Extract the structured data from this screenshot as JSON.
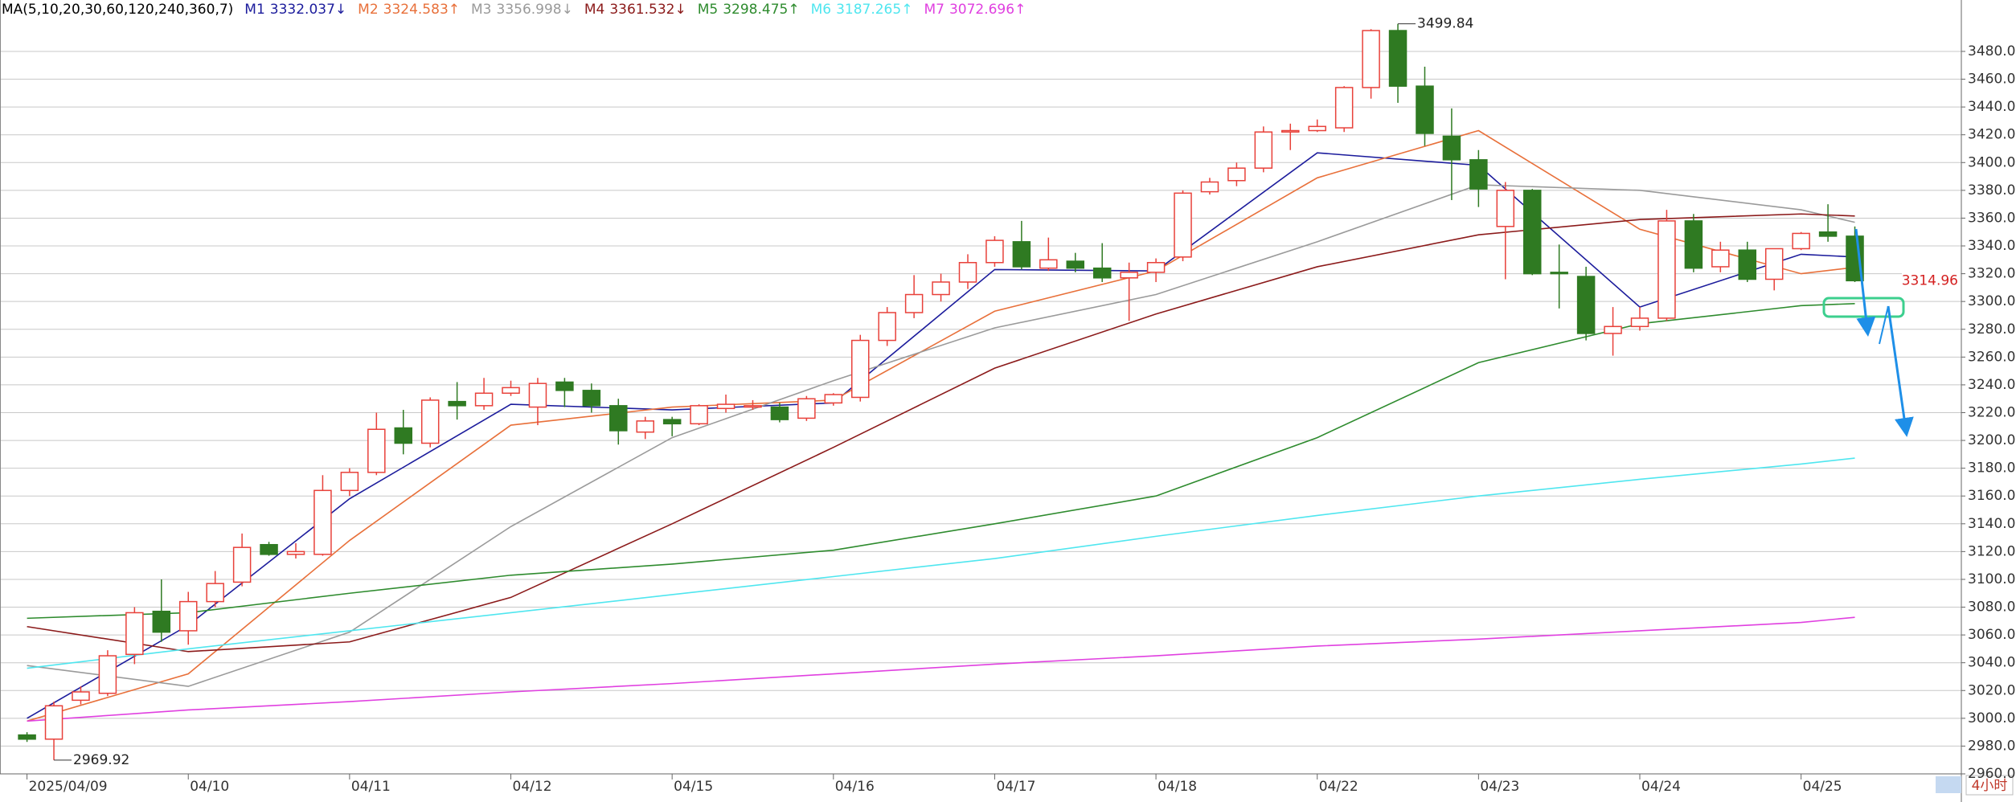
{
  "chart_data": {
    "type": "candlestick",
    "indicator": "MA(5,10,20,30,60,120,240,360,7)",
    "ylim": [
      2960,
      3517
    ],
    "yticks": [
      {
        "value": 2960,
        "label": "2960.00"
      },
      {
        "value": 2980,
        "label": "2980.00"
      },
      {
        "value": 3000,
        "label": "3000.00"
      },
      {
        "value": 3020,
        "label": "3020.00"
      },
      {
        "value": 3040,
        "label": "3040.00"
      },
      {
        "value": 3060,
        "label": "3060.00"
      },
      {
        "value": 3080,
        "label": "3080.00"
      },
      {
        "value": 3100,
        "label": "3100.00"
      },
      {
        "value": 3120,
        "label": "3120.00"
      },
      {
        "value": 3140,
        "label": "3140.00"
      },
      {
        "value": 3160,
        "label": "3160.00"
      },
      {
        "value": 3180,
        "label": "3180.00"
      },
      {
        "value": 3200,
        "label": "3200.00"
      },
      {
        "value": 3220,
        "label": "3220.00"
      },
      {
        "value": 3240,
        "label": "3240.00"
      },
      {
        "value": 3260,
        "label": "3260.00"
      },
      {
        "value": 3280,
        "label": "3280.00"
      },
      {
        "value": 3300,
        "label": "3300.00"
      },
      {
        "value": 3320,
        "label": "3320.00"
      },
      {
        "value": 3340,
        "label": "3340.00"
      },
      {
        "value": 3360,
        "label": "3360.00"
      },
      {
        "value": 3380,
        "label": "3380.00"
      },
      {
        "value": 3400,
        "label": "3400.00"
      },
      {
        "value": 3420,
        "label": "3420.00"
      },
      {
        "value": 3440,
        "label": "3440.00"
      },
      {
        "value": 3460,
        "label": "3460.00"
      },
      {
        "value": 3480,
        "label": "3480.00"
      }
    ],
    "grid": true,
    "up_color": "#e8413a",
    "down_color": "#2f7a22",
    "period": "4小时",
    "days": [
      {
        "label": "2025/04/09",
        "candles": [
          {
            "open": 2988,
            "high": 2990,
            "low": 2983,
            "close": 2985
          },
          {
            "open": 2985,
            "high": 3012,
            "low": 2969.92,
            "close": 3009
          },
          {
            "open": 3013,
            "high": 3023,
            "low": 3010,
            "close": 3019
          },
          {
            "open": 3018,
            "high": 3049,
            "low": 3016,
            "close": 3045
          },
          {
            "open": 3046,
            "high": 3080,
            "low": 3039,
            "close": 3076
          },
          {
            "open": 3077,
            "high": 3100,
            "low": 3055,
            "close": 3062
          }
        ]
      },
      {
        "label": "04/10",
        "candles": [
          {
            "open": 3063,
            "high": 3091,
            "low": 3053,
            "close": 3084
          },
          {
            "open": 3084,
            "high": 3106,
            "low": 3080,
            "close": 3097
          },
          {
            "open": 3098,
            "high": 3133,
            "low": 3095,
            "close": 3123
          },
          {
            "open": 3125,
            "high": 3127,
            "low": 3117,
            "close": 3118
          },
          {
            "open": 3118,
            "high": 3126,
            "low": 3115,
            "close": 3120
          },
          {
            "open": 3118,
            "high": 3175,
            "low": 3117,
            "close": 3164
          }
        ]
      },
      {
        "label": "04/11",
        "candles": [
          {
            "open": 3164,
            "high": 3180,
            "low": 3160,
            "close": 3177
          },
          {
            "open": 3177,
            "high": 3220,
            "low": 3175,
            "close": 3208
          },
          {
            "open": 3209,
            "high": 3222,
            "low": 3190,
            "close": 3198
          },
          {
            "open": 3198,
            "high": 3231,
            "low": 3195,
            "close": 3229
          },
          {
            "open": 3228,
            "high": 3242,
            "low": 3215,
            "close": 3225
          },
          {
            "open": 3225,
            "high": 3245,
            "low": 3222,
            "close": 3234
          }
        ]
      },
      {
        "label": "04/12",
        "candles": [
          {
            "open": 3234,
            "high": 3243,
            "low": 3232,
            "close": 3238
          },
          {
            "open": 3224,
            "high": 3245,
            "low": 3211,
            "close": 3241
          },
          {
            "open": 3242,
            "high": 3245,
            "low": 3224,
            "close": 3236
          },
          {
            "open": 3236,
            "high": 3241,
            "low": 3220,
            "close": 3225
          },
          {
            "open": 3225,
            "high": 3230,
            "low": 3197,
            "close": 3207
          },
          {
            "open": 3206,
            "high": 3217,
            "low": 3201,
            "close": 3214
          }
        ]
      },
      {
        "label": "04/15",
        "candles": [
          {
            "open": 3215,
            "high": 3217,
            "low": 3203,
            "close": 3212
          },
          {
            "open": 3212,
            "high": 3226,
            "low": 3211,
            "close": 3225
          },
          {
            "open": 3223,
            "high": 3233,
            "low": 3220,
            "close": 3226
          },
          {
            "open": 3224,
            "high": 3229,
            "low": 3222,
            "close": 3225
          },
          {
            "open": 3224,
            "high": 3227,
            "low": 3213,
            "close": 3215
          },
          {
            "open": 3216,
            "high": 3232,
            "low": 3214,
            "close": 3230
          }
        ]
      },
      {
        "label": "04/16",
        "candles": [
          {
            "open": 3227,
            "high": 3234,
            "low": 3225,
            "close": 3233
          },
          {
            "open": 3231,
            "high": 3276,
            "low": 3228,
            "close": 3272
          },
          {
            "open": 3272,
            "high": 3296,
            "low": 3268,
            "close": 3292
          },
          {
            "open": 3292,
            "high": 3319,
            "low": 3288,
            "close": 3305
          },
          {
            "open": 3305,
            "high": 3320,
            "low": 3300,
            "close": 3314
          },
          {
            "open": 3314,
            "high": 3334,
            "low": 3309,
            "close": 3328
          }
        ]
      },
      {
        "label": "04/17",
        "candles": [
          {
            "open": 3328,
            "high": 3347,
            "low": 3325,
            "close": 3344
          },
          {
            "open": 3343,
            "high": 3358,
            "low": 3323,
            "close": 3325
          },
          {
            "open": 3324,
            "high": 3346,
            "low": 3322,
            "close": 3330
          },
          {
            "open": 3329,
            "high": 3335,
            "low": 3321,
            "close": 3324
          },
          {
            "open": 3324,
            "high": 3342,
            "low": 3314,
            "close": 3317
          },
          {
            "open": 3317,
            "high": 3328,
            "low": 3286,
            "close": 3321
          }
        ]
      },
      {
        "label": "04/18",
        "candles": [
          {
            "open": 3321,
            "high": 3331,
            "low": 3314,
            "close": 3328
          },
          {
            "open": 3332,
            "high": 3380,
            "low": 3329,
            "close": 3378
          },
          {
            "open": 3379,
            "high": 3389,
            "low": 3377,
            "close": 3386
          },
          {
            "open": 3387,
            "high": 3400,
            "low": 3383,
            "close": 3396
          },
          {
            "open": 3396,
            "high": 3426,
            "low": 3393,
            "close": 3422
          },
          {
            "open": 3422,
            "high": 3428,
            "low": 3409,
            "close": 3423
          }
        ]
      },
      {
        "label": "04/22",
        "candles": [
          {
            "open": 3423,
            "high": 3431,
            "low": 3422,
            "close": 3426
          },
          {
            "open": 3425,
            "high": 3455,
            "low": 3422,
            "close": 3454
          },
          {
            "open": 3454,
            "high": 3496,
            "low": 3446,
            "close": 3495
          },
          {
            "open": 3495,
            "high": 3499.84,
            "low": 3443,
            "close": 3455
          },
          {
            "open": 3455,
            "high": 3469,
            "low": 3412,
            "close": 3421
          },
          {
            "open": 3419,
            "high": 3439,
            "low": 3373,
            "close": 3402
          }
        ]
      },
      {
        "label": "04/23",
        "candles": [
          {
            "open": 3402,
            "high": 3409,
            "low": 3368,
            "close": 3381
          },
          {
            "open": 3354,
            "high": 3386,
            "low": 3316,
            "close": 3380
          },
          {
            "open": 3380,
            "high": 3381,
            "low": 3319,
            "close": 3320
          },
          {
            "open": 3321,
            "high": 3341,
            "low": 3295,
            "close": 3320
          },
          {
            "open": 3318,
            "high": 3325,
            "low": 3272,
            "close": 3277
          },
          {
            "open": 3277,
            "high": 3296,
            "low": 3261,
            "close": 3282
          }
        ]
      },
      {
        "label": "04/24",
        "candles": [
          {
            "open": 3282,
            "high": 3296,
            "low": 3279,
            "close": 3288
          },
          {
            "open": 3288,
            "high": 3366,
            "low": 3286,
            "close": 3358
          },
          {
            "open": 3358,
            "high": 3363,
            "low": 3321,
            "close": 3324
          },
          {
            "open": 3325,
            "high": 3343,
            "low": 3321,
            "close": 3337
          },
          {
            "open": 3337,
            "high": 3343,
            "low": 3314,
            "close": 3316
          },
          {
            "open": 3316,
            "high": 3338,
            "low": 3308,
            "close": 3338
          }
        ]
      },
      {
        "label": "04/25",
        "candles": [
          {
            "open": 3338,
            "high": 3350,
            "low": 3337,
            "close": 3349
          },
          {
            "open": 3350,
            "high": 3370,
            "low": 3343,
            "close": 3347
          },
          {
            "open": 3347,
            "high": 3354,
            "low": 3314,
            "close": 3314.96
          }
        ]
      }
    ],
    "series": [
      {
        "name": "M1",
        "color": "#1c1c9c",
        "values": [
          3000,
          3067,
          3158,
          3226,
          3222,
          3227,
          3323,
          3322,
          3407,
          3398,
          3296,
          3334
        ],
        "last": 3332.037,
        "trend": "↓"
      },
      {
        "name": "M2",
        "color": "#e8703a",
        "values": [
          2998,
          3032,
          3128,
          3211,
          3224,
          3229,
          3293,
          3322,
          3389,
          3423,
          3352,
          3320
        ],
        "last": 3324.583,
        "trend": "↑"
      },
      {
        "name": "M3",
        "color": "#9a9a9a",
        "values": [
          3038,
          3023,
          3062,
          3138,
          3202,
          3243,
          3281,
          3305,
          3343,
          3384,
          3380,
          3366
        ],
        "last": 3356.998,
        "trend": "↓"
      },
      {
        "name": "M4",
        "color": "#8b1a1a",
        "values": [
          3066,
          3048,
          3055,
          3087,
          3140,
          3195,
          3252,
          3291,
          3325,
          3348,
          3359,
          3363
        ],
        "last": 3361.532,
        "trend": "↓"
      },
      {
        "name": "M5",
        "color": "#2e8b2e",
        "values": [
          3072,
          3076,
          3090,
          3103,
          3111,
          3121,
          3140,
          3160,
          3202,
          3256,
          3284,
          3297
        ],
        "last": 3298.475,
        "trend": "↑"
      },
      {
        "name": "M6",
        "color": "#4fe6ef",
        "values": [
          3036,
          3050,
          3063,
          3076,
          3089,
          3102,
          3115,
          3131,
          3146,
          3160,
          3172,
          3183
        ],
        "last": 3187.265,
        "trend": "↑"
      },
      {
        "name": "M7",
        "color": "#e040e0",
        "values": [
          2998,
          3006,
          3012,
          3019,
          3025,
          3032,
          3039,
          3045,
          3052,
          3057,
          3063,
          3069
        ],
        "last": 3072.696,
        "trend": "↑"
      }
    ]
  }
}
